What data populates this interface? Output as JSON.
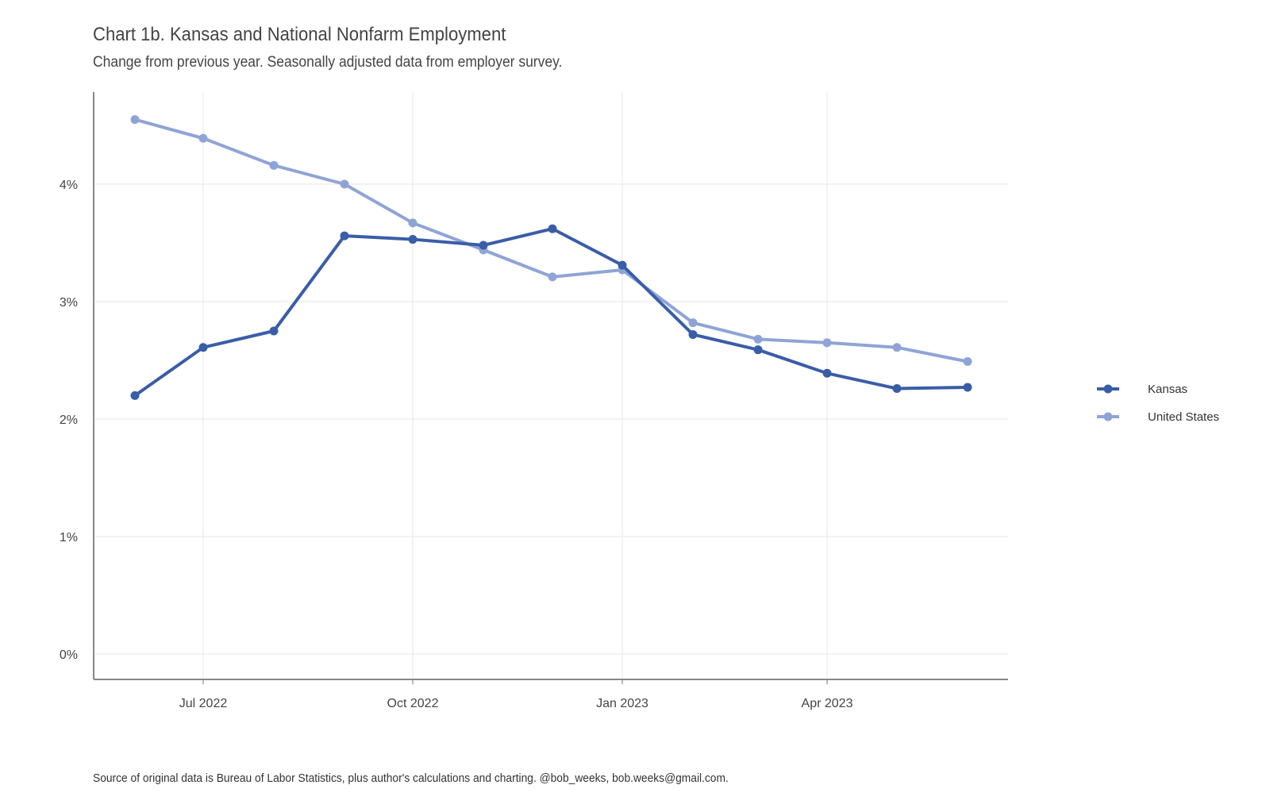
{
  "chart_title": "Chart 1b. Kansas and National Nonfarm Employment",
  "chart_subtitle": "Change from previous year. Seasonally adjusted data from employer survey.",
  "caption": "Source of original data is Bureau of Labor Statistics, plus author's calculations and charting. @bob_weeks, bob.weeks@gmail.com.",
  "chart_data": {
    "type": "line",
    "title": "Chart 1b. Kansas and National Nonfarm Employment",
    "subtitle": "Change from previous year. Seasonally adjusted data from employer survey.",
    "xlabel": "",
    "ylabel": "",
    "x": [
      "2022-06",
      "2022-07",
      "2022-08",
      "2022-09",
      "2022-10",
      "2022-11",
      "2022-12",
      "2023-01",
      "2023-02",
      "2023-03",
      "2023-04",
      "2023-05",
      "2023-06"
    ],
    "x_ticks": [
      "Jul 2022",
      "Oct 2022",
      "Jan 2023",
      "Apr 2023"
    ],
    "y_ticks": [
      "0%",
      "1%",
      "2%",
      "3%",
      "4%"
    ],
    "ylim": [
      0,
      4.6
    ],
    "y_unit": "%",
    "grid": true,
    "legend_position": "right",
    "series": [
      {
        "name": "Kansas",
        "color": "#3a5da8",
        "values": [
          2.2,
          2.61,
          2.75,
          3.56,
          3.53,
          3.48,
          3.62,
          3.31,
          2.72,
          2.59,
          2.39,
          2.26,
          2.27
        ]
      },
      {
        "name": "United States",
        "color": "#8fa4d6",
        "values": [
          4.55,
          4.39,
          4.16,
          4.0,
          3.67,
          3.44,
          3.21,
          3.27,
          2.82,
          2.68,
          2.65,
          2.61,
          2.49
        ]
      }
    ]
  }
}
